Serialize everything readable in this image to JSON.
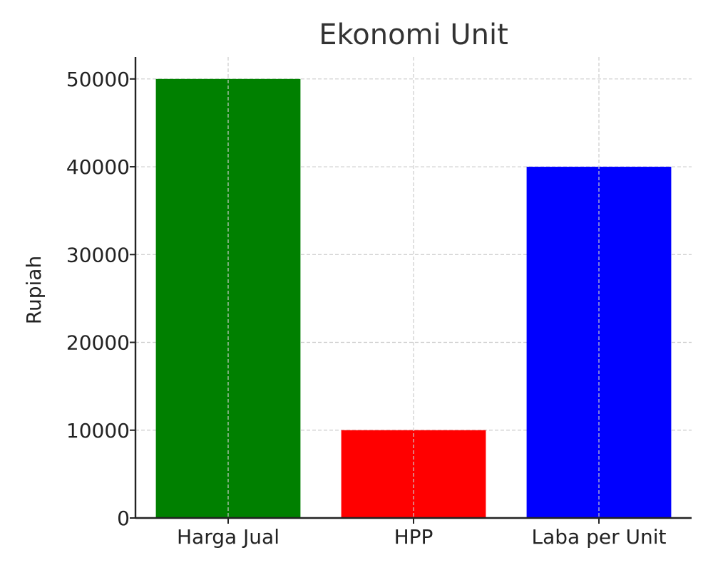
{
  "chart_data": {
    "type": "bar",
    "title": "Ekonomi Unit",
    "xlabel": "",
    "ylabel": "Rupiah",
    "categories": [
      "Harga Jual",
      "HPP",
      "Laba per Unit"
    ],
    "values": [
      50000,
      10000,
      40000
    ],
    "colors": [
      "#008000",
      "#ff0000",
      "#0000ff"
    ],
    "ylim": [
      0,
      52500
    ],
    "yticks": [
      0,
      10000,
      20000,
      30000,
      40000,
      50000
    ],
    "grid": true,
    "legend": "none"
  }
}
